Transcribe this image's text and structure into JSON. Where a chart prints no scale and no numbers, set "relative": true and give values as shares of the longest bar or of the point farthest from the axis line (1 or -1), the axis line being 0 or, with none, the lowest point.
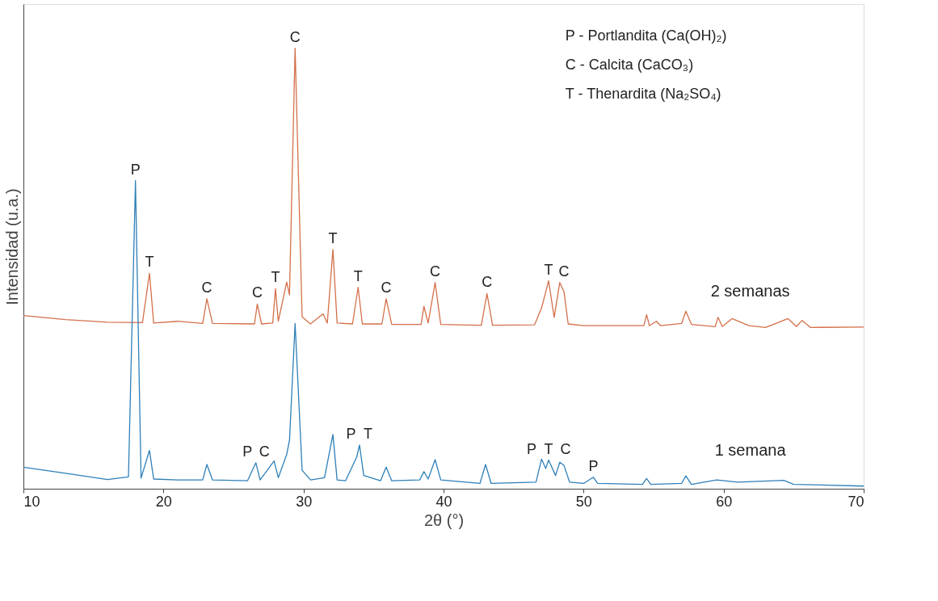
{
  "chart_data": {
    "type": "line",
    "relative": true,
    "xlabel": "2θ (°)",
    "ylabel": "Intensidad (u.a.)",
    "xlim": [
      10,
      70
    ],
    "xticks": [
      10,
      20,
      30,
      40,
      50,
      60,
      70
    ],
    "tick_labels": "x",
    "grid": false,
    "legend": false,
    "line_style": "solid",
    "marker": "none",
    "series": [
      {
        "name": "2 semanas",
        "color": "#d4704a",
        "x": [
          10,
          13,
          16,
          18.5,
          19.0,
          19.3,
          21,
          22.8,
          23.1,
          23.5,
          26.5,
          26.7,
          27.0,
          27.8,
          28.0,
          28.2,
          28.8,
          29.0,
          29.4,
          29.9,
          30.5,
          31.4,
          31.7,
          32.1,
          32.4,
          33.5,
          33.9,
          34.2,
          35.6,
          35.9,
          36.3,
          38.4,
          38.6,
          38.9,
          39.4,
          39.8,
          41,
          42.7,
          43.1,
          43.5,
          46.5,
          47.0,
          47.5,
          47.9,
          48.3,
          48.6,
          48.9,
          50,
          54.3,
          54.5,
          54.7,
          55.2,
          55.5,
          57.0,
          57.3,
          57.7,
          59.4,
          59.6,
          59.9,
          60.6,
          61.8,
          63,
          64.6,
          65.2,
          65.6,
          66.2,
          70
        ],
        "values": [
          0.393,
          0.384,
          0.378,
          0.377,
          0.489,
          0.376,
          0.38,
          0.375,
          0.431,
          0.375,
          0.374,
          0.419,
          0.374,
          0.376,
          0.454,
          0.38,
          0.469,
          0.44,
          1.0,
          0.39,
          0.374,
          0.397,
          0.376,
          0.543,
          0.376,
          0.374,
          0.457,
          0.374,
          0.374,
          0.431,
          0.373,
          0.373,
          0.414,
          0.376,
          0.468,
          0.373,
          0.372,
          0.371,
          0.443,
          0.371,
          0.372,
          0.41,
          0.472,
          0.389,
          0.468,
          0.447,
          0.374,
          0.37,
          0.37,
          0.395,
          0.37,
          0.38,
          0.37,
          0.375,
          0.403,
          0.373,
          0.368,
          0.389,
          0.368,
          0.386,
          0.37,
          0.366,
          0.386,
          0.368,
          0.382,
          0.366,
          0.367
        ]
      },
      {
        "name": "1 semana",
        "color": "#2e7fb8",
        "x": [
          10,
          13,
          16,
          17.5,
          18.0,
          18.4,
          19.0,
          19.3,
          21,
          22.8,
          23.1,
          23.5,
          26,
          26.6,
          26.9,
          27.9,
          28.2,
          28.8,
          29.0,
          29.4,
          29.9,
          30.5,
          31.5,
          32.1,
          32.4,
          33.0,
          33.8,
          34.0,
          34.3,
          35.5,
          35.9,
          36.3,
          38.3,
          38.6,
          38.9,
          39.4,
          39.8,
          42.6,
          43.0,
          43.4,
          46.6,
          47.0,
          47.3,
          47.5,
          48.0,
          48.3,
          48.6,
          49.0,
          50.0,
          50.7,
          51.0,
          54.2,
          54.5,
          54.8,
          57.0,
          57.3,
          57.7,
          59.5,
          61,
          64.3,
          65.0,
          70
        ],
        "values": [
          0.049,
          0.035,
          0.021,
          0.027,
          0.699,
          0.024,
          0.087,
          0.022,
          0.02,
          0.02,
          0.055,
          0.02,
          0.018,
          0.059,
          0.02,
          0.063,
          0.025,
          0.078,
          0.11,
          0.375,
          0.042,
          0.02,
          0.025,
          0.123,
          0.02,
          0.018,
          0.072,
          0.099,
          0.03,
          0.018,
          0.049,
          0.018,
          0.02,
          0.039,
          0.022,
          0.066,
          0.02,
          0.012,
          0.055,
          0.012,
          0.015,
          0.067,
          0.046,
          0.065,
          0.03,
          0.06,
          0.053,
          0.015,
          0.012,
          0.026,
          0.012,
          0.01,
          0.023,
          0.01,
          0.012,
          0.029,
          0.01,
          0.02,
          0.015,
          0.019,
          0.01,
          0.006
        ]
      }
    ],
    "annotations": [
      {
        "text": "P",
        "x": 18.0,
        "y": 0.699
      },
      {
        "text": "T",
        "x": 19.0,
        "y": 0.489
      },
      {
        "text": "C",
        "x": 23.1,
        "y": 0.431
      },
      {
        "text": "C",
        "x": 26.7,
        "y": 0.419
      },
      {
        "text": "T",
        "x": 28.0,
        "y": 0.454
      },
      {
        "text": "C",
        "x": 29.4,
        "y": 1.0
      },
      {
        "text": "T",
        "x": 32.1,
        "y": 0.543
      },
      {
        "text": "T",
        "x": 33.9,
        "y": 0.457
      },
      {
        "text": "C",
        "x": 35.9,
        "y": 0.431
      },
      {
        "text": "C",
        "x": 39.4,
        "y": 0.468
      },
      {
        "text": "C",
        "x": 43.1,
        "y": 0.443
      },
      {
        "text": "T",
        "x": 47.5,
        "y": 0.472
      },
      {
        "text": "C",
        "x": 48.6,
        "y": 0.468
      },
      {
        "text": "P",
        "x": 26.6,
        "y": 0.059
      },
      {
        "text": "C",
        "x": 26.6,
        "y": 0.059
      },
      {
        "text": "P",
        "x": 34.0,
        "y": 0.099
      },
      {
        "text": "T",
        "x": 34.0,
        "y": 0.099
      },
      {
        "text": "P",
        "x": 47.5,
        "y": 0.065
      },
      {
        "text": "T",
        "x": 47.5,
        "y": 0.065
      },
      {
        "text": "C",
        "x": 47.5,
        "y": 0.065
      },
      {
        "text": "P",
        "x": 50.7,
        "y": 0.026
      },
      "P - Portlandita (Ca(OH)₂)",
      "C - Calcita (CaCO₃)",
      "T - Thenardita (Na₂SO₄)"
    ]
  }
}
